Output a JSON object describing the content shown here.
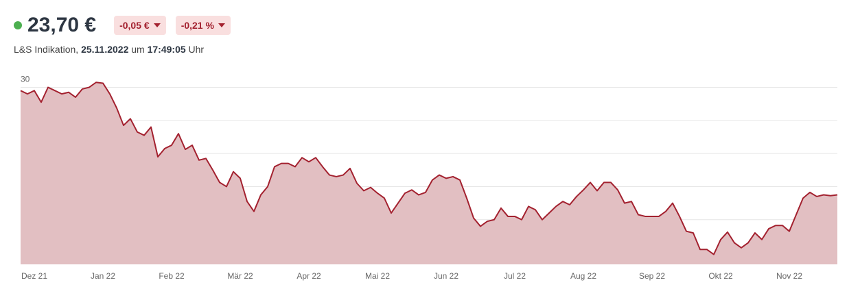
{
  "header": {
    "price": "23,70 €",
    "change_abs": "-0,05 €",
    "change_pct": "-0,21 %",
    "source": "L&S Indikation, ",
    "date": "25.11.2022",
    "um": " um ",
    "time": "17:49:05",
    "uhr": " Uhr"
  },
  "chart_data": {
    "type": "area",
    "color": "#a3212f",
    "fill": "#e2bfc2",
    "grid": true,
    "ylim": [
      19.3,
      30.6
    ],
    "yticks": [
      20,
      22,
      24,
      26,
      28,
      30
    ],
    "categories": [
      null,
      null,
      "Dez 21",
      null,
      null,
      null,
      null,
      null,
      null,
      null,
      null,
      null,
      "Jan 22",
      null,
      null,
      null,
      null,
      null,
      null,
      null,
      null,
      null,
      "Feb 22",
      null,
      null,
      null,
      null,
      null,
      null,
      null,
      null,
      null,
      "Mär 22",
      null,
      null,
      null,
      null,
      null,
      null,
      null,
      null,
      null,
      "Apr 22",
      null,
      null,
      null,
      null,
      null,
      null,
      null,
      null,
      null,
      "Mai 22",
      null,
      null,
      null,
      null,
      null,
      null,
      null,
      null,
      null,
      "Jun 22",
      null,
      null,
      null,
      null,
      null,
      null,
      null,
      null,
      null,
      "Jul 22",
      null,
      null,
      null,
      null,
      null,
      null,
      null,
      null,
      null,
      "Aug 22",
      null,
      null,
      null,
      null,
      null,
      null,
      null,
      null,
      null,
      "Sep 22",
      null,
      null,
      null,
      null,
      null,
      null,
      null,
      null,
      null,
      "Okt 22",
      null,
      null,
      null,
      null,
      null,
      null,
      null,
      null,
      null,
      "Nov 22",
      null,
      null,
      null,
      null,
      null,
      null,
      null
    ],
    "values": [
      29.8,
      29.6,
      29.8,
      29.1,
      30.0,
      29.8,
      29.6,
      29.7,
      29.4,
      29.9,
      30.0,
      30.3,
      30.25,
      29.6,
      28.75,
      27.7,
      28.1,
      27.3,
      27.1,
      27.6,
      25.8,
      26.3,
      26.5,
      27.2,
      26.25,
      26.5,
      25.6,
      25.7,
      25.0,
      24.25,
      24.0,
      24.9,
      24.5,
      23.1,
      22.5,
      23.5,
      24.0,
      25.2,
      25.4,
      25.4,
      25.2,
      25.75,
      25.5,
      25.75,
      25.2,
      24.7,
      24.6,
      24.7,
      25.1,
      24.2,
      23.75,
      23.95,
      23.6,
      23.3,
      22.4,
      23.0,
      23.6,
      23.8,
      23.5,
      23.65,
      24.4,
      24.7,
      24.5,
      24.6,
      24.4,
      23.3,
      22.1,
      21.6,
      21.9,
      22.0,
      22.7,
      22.2,
      22.2,
      22.0,
      22.8,
      22.6,
      22.0,
      22.4,
      22.8,
      23.1,
      22.9,
      23.4,
      23.8,
      24.25,
      23.75,
      24.25,
      24.25,
      23.8,
      23.0,
      23.1,
      22.3,
      22.2,
      22.2,
      22.2,
      22.5,
      23.0,
      22.2,
      21.3,
      21.2,
      20.2,
      20.2,
      19.9,
      20.8,
      21.25,
      20.6,
      20.3,
      20.6,
      21.2,
      20.8,
      21.45,
      21.65,
      21.65,
      21.3,
      22.3,
      23.3,
      23.65,
      23.4,
      23.5,
      23.45,
      23.5
    ]
  }
}
